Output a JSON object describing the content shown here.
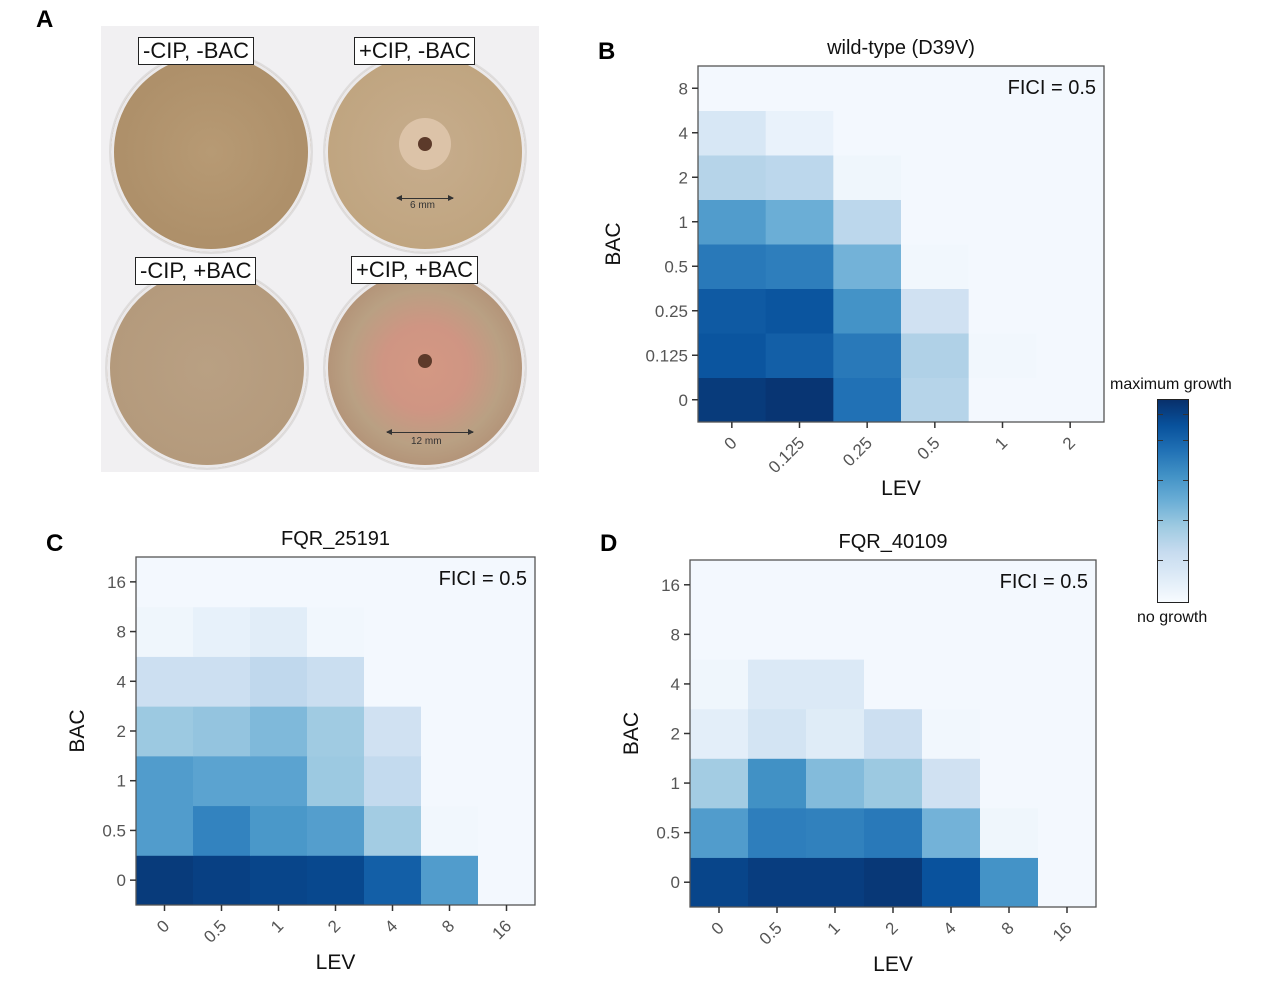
{
  "panel_labels": [
    "A",
    "B",
    "C",
    "D"
  ],
  "photo": {
    "plates": [
      {
        "label": "-CIP, -BAC",
        "measurement": null
      },
      {
        "label": "+CIP, -BAC",
        "measurement": "6 mm"
      },
      {
        "label": "-CIP, +BAC",
        "measurement": null
      },
      {
        "label": "+CIP, +BAC",
        "measurement": "12 mm"
      }
    ]
  },
  "legend": {
    "top_label": "maximum growth",
    "bottom_label": "no growth",
    "colors": [
      "#f7fbff",
      "#deebf7",
      "#c6dbef",
      "#9ecae1",
      "#6baed6",
      "#4292c6",
      "#2171b5",
      "#08519c",
      "#08306b"
    ]
  },
  "chart_data": [
    {
      "type": "heatmap",
      "panel": "B",
      "title": "wild-type (D39V)",
      "annotation": "FICI = 0.5",
      "xlabel": "LEV",
      "ylabel": "BAC",
      "x_categories": [
        "0",
        "0.125",
        "0.25",
        "0.5",
        "1",
        "2"
      ],
      "y_categories": [
        "0",
        "0.125",
        "0.25",
        "0.5",
        "1",
        "2",
        "4",
        "8"
      ],
      "value_range": [
        0,
        1
      ],
      "values": [
        [
          0.96,
          0.98,
          0.75,
          0.3,
          0.02,
          0.02
        ],
        [
          0.86,
          0.82,
          0.72,
          0.32,
          0.03,
          0.02
        ],
        [
          0.84,
          0.86,
          0.62,
          0.2,
          0.02,
          0.02
        ],
        [
          0.72,
          0.7,
          0.48,
          0.03,
          0.02,
          0.02
        ],
        [
          0.58,
          0.5,
          0.28,
          0.02,
          0.02,
          0.02
        ],
        [
          0.3,
          0.28,
          0.04,
          0.02,
          0.02,
          0.02
        ],
        [
          0.16,
          0.07,
          0.02,
          0.02,
          0.02,
          0.02
        ],
        [
          0.02,
          0.02,
          0.02,
          0.02,
          0.02,
          0.02
        ]
      ]
    },
    {
      "type": "heatmap",
      "panel": "C",
      "title": "FQR_25191",
      "annotation": "FICI = 0.5",
      "xlabel": "LEV",
      "ylabel": "BAC",
      "x_categories": [
        "0",
        "0.5",
        "1",
        "2",
        "4",
        "8",
        "16"
      ],
      "y_categories": [
        "0",
        "0.5",
        "1",
        "2",
        "4",
        "8",
        "16"
      ],
      "value_range": [
        0,
        1
      ],
      "values": [
        [
          0.96,
          0.94,
          0.92,
          0.91,
          0.82,
          0.58,
          0.02
        ],
        [
          0.58,
          0.68,
          0.6,
          0.57,
          0.36,
          0.03,
          0.02
        ],
        [
          0.58,
          0.55,
          0.55,
          0.38,
          0.26,
          0.02,
          0.02
        ],
        [
          0.38,
          0.4,
          0.45,
          0.37,
          0.2,
          0.02,
          0.02
        ],
        [
          0.22,
          0.22,
          0.27,
          0.23,
          0.02,
          0.02,
          0.02
        ],
        [
          0.04,
          0.08,
          0.11,
          0.03,
          0.02,
          0.02,
          0.02
        ],
        [
          0.02,
          0.02,
          0.02,
          0.02,
          0.02,
          0.02,
          0.02
        ]
      ]
    },
    {
      "type": "heatmap",
      "panel": "D",
      "title": "FQR_40109",
      "annotation": "FICI = 0.5",
      "xlabel": "LEV",
      "ylabel": "BAC",
      "x_categories": [
        "0",
        "0.5",
        "1",
        "2",
        "4",
        "8",
        "16"
      ],
      "y_categories": [
        "0",
        "0.5",
        "1",
        "2",
        "4",
        "8",
        "16"
      ],
      "value_range": [
        0,
        1
      ],
      "values": [
        [
          0.92,
          0.95,
          0.95,
          0.97,
          0.87,
          0.62,
          0.02
        ],
        [
          0.58,
          0.7,
          0.69,
          0.72,
          0.48,
          0.04,
          0.02
        ],
        [
          0.36,
          0.63,
          0.44,
          0.38,
          0.2,
          0.02,
          0.02
        ],
        [
          0.1,
          0.18,
          0.12,
          0.22,
          0.03,
          0.02,
          0.02
        ],
        [
          0.04,
          0.14,
          0.14,
          0.02,
          0.02,
          0.02,
          0.02
        ],
        [
          0.02,
          0.02,
          0.02,
          0.02,
          0.02,
          0.02,
          0.02
        ],
        [
          0.02,
          0.02,
          0.02,
          0.02,
          0.02,
          0.02,
          0.02
        ]
      ]
    }
  ]
}
